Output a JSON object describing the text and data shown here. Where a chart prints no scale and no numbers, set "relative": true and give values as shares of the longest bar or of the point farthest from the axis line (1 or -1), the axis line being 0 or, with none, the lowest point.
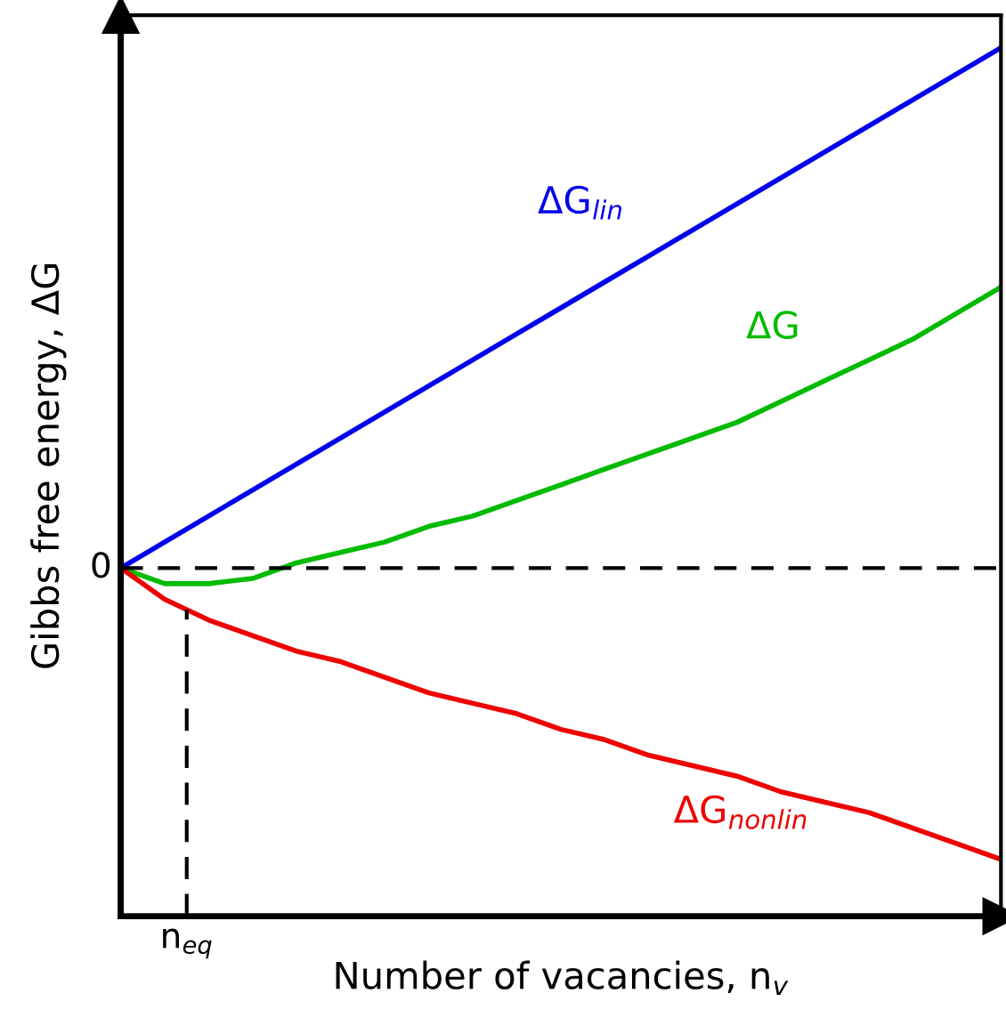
{
  "chart_data": {
    "type": "line",
    "relative": true,
    "xlabel": "Number of vacancies, n$_{v}$",
    "ylabel": "Gibbs free energy, ΔG",
    "categories": [
      null,
      null,
      null,
      null,
      null,
      null,
      null,
      null,
      null,
      null,
      null,
      null,
      null,
      null,
      null,
      null,
      null,
      null,
      null,
      null,
      null
    ],
    "series": [
      {
        "name": "ΔG$_{lin}$",
        "color": "#0000ee",
        "values": [
          0,
          0.05,
          0.1,
          0.15,
          0.2,
          0.25,
          0.3,
          0.35,
          0.4,
          0.45,
          0.5,
          0.55,
          0.6,
          0.65,
          0.7,
          0.75,
          0.8,
          0.85,
          0.9,
          0.95,
          1
        ]
      },
      {
        "name": "ΔG",
        "color": "#00bb00",
        "values": [
          0,
          -0.03,
          -0.03,
          -0.02,
          0.01,
          0.03,
          0.05,
          0.08,
          0.1,
          0.13,
          0.16,
          0.19,
          0.22,
          0.25,
          0.28,
          0.32,
          0.36,
          0.4,
          0.44,
          0.49,
          0.54
        ]
      },
      {
        "name": "ΔG$_{nonlin}$",
        "color": "#ee0000",
        "values": [
          0,
          -0.06,
          -0.1,
          -0.13,
          -0.16,
          -0.18,
          -0.21,
          -0.24,
          -0.26,
          -0.28,
          -0.31,
          -0.33,
          -0.36,
          -0.38,
          -0.4,
          -0.43,
          -0.45,
          -0.47,
          -0.5,
          -0.53,
          -0.56
        ]
      }
    ],
    "ref_lines": [
      {
        "axis": "y",
        "value": 0,
        "label": "0",
        "color": "#000000",
        "line_style": "dashed"
      }
    ],
    "annotations": [
      "n$_{eq}$"
    ],
    "marker": "none",
    "line_style": "solid"
  }
}
